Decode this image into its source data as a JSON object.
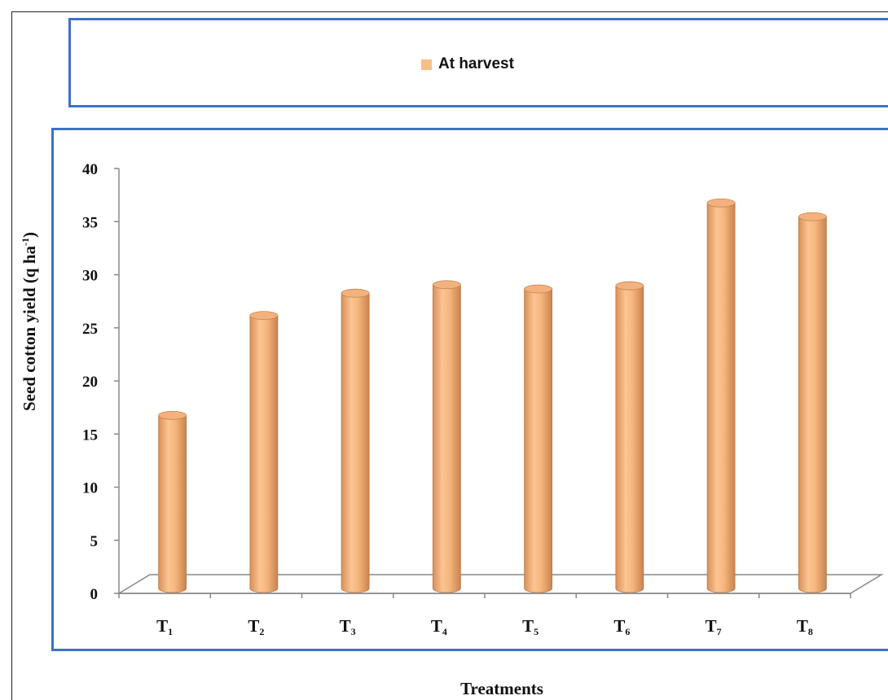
{
  "legend": {
    "label": "At harvest",
    "color": "#f8bf87"
  },
  "chart_data": {
    "type": "bar",
    "style": "3d-cylinder",
    "title": "",
    "xlabel": "Treatments",
    "ylabel": "Seed cotton yield (q ha",
    "ylabel_sup": "-1",
    "ylabel_close": ")",
    "ylim": [
      0,
      40
    ],
    "yticks": [
      0,
      5,
      10,
      15,
      20,
      25,
      30,
      35,
      40
    ],
    "categories": [
      {
        "main": "T",
        "sub": "1"
      },
      {
        "main": "T",
        "sub": "2"
      },
      {
        "main": "T",
        "sub": "3"
      },
      {
        "main": "T",
        "sub": "4"
      },
      {
        "main": "T",
        "sub": "5"
      },
      {
        "main": "T",
        "sub": "6"
      },
      {
        "main": "T",
        "sub": "7"
      },
      {
        "main": "T",
        "sub": "8"
      }
    ],
    "series": [
      {
        "name": "At harvest",
        "values": [
          16.3,
          25.7,
          27.8,
          28.6,
          28.2,
          28.5,
          36.3,
          35.0
        ]
      }
    ],
    "legend_position": "top",
    "grid": false
  }
}
